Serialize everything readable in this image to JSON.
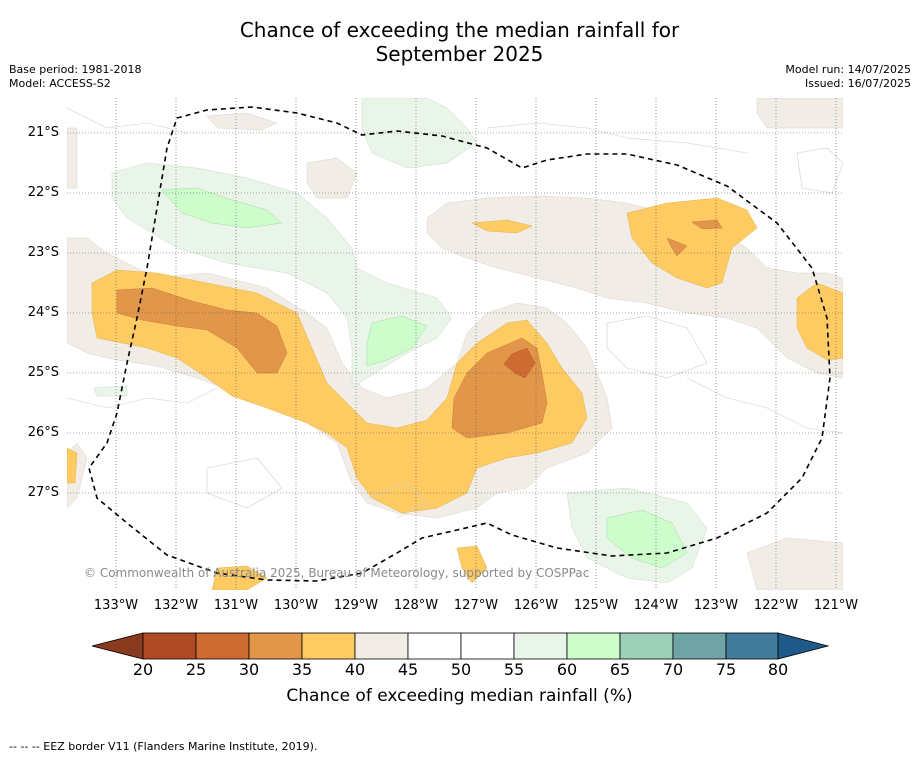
{
  "title_line1": "Chance of exceeding the median rainfall for",
  "title_line2": "September 2025",
  "meta": {
    "base_period": "Base period: 1981-2018",
    "model": "Model: ACCESS-S2",
    "model_run": "Model run: 14/07/2025",
    "issued": "Issued: 16/07/2025"
  },
  "axes": {
    "lat_labels": [
      "21°S",
      "22°S",
      "23°S",
      "24°S",
      "25°S",
      "26°S",
      "27°S"
    ],
    "lon_labels": [
      "133°W",
      "132°W",
      "131°W",
      "130°W",
      "129°W",
      "128°W",
      "127°W",
      "126°W",
      "125°W",
      "124°W",
      "123°W",
      "122°W",
      "121°W"
    ]
  },
  "copyright": "© Commonwealth of Australia 2025, Bureau of Meteorology, supported by COSPPac",
  "colorbar": {
    "ticks": [
      "20",
      "25",
      "30",
      "35",
      "40",
      "45",
      "50",
      "55",
      "60",
      "65",
      "70",
      "75",
      "80"
    ],
    "label": "Chance of exceeding median rainfall (%)",
    "colors": {
      "below20": "#8a3a1e",
      "c20_25": "#b04a24",
      "c25_30": "#cd6b32",
      "c30_35": "#e1964a",
      "c35_40": "#fecb62",
      "c40_45": "#f1ede6",
      "c45_50": "#ffffff",
      "c50_55": "#ffffff",
      "c55_60": "#e9f5e8",
      "c60_65": "#ccfdca",
      "c65_70": "#9ecfb8",
      "c70_75": "#6fa3a6",
      "c75_80": "#437b9c",
      "above80": "#1f5a8a"
    }
  },
  "footnote": "--  --  -- EEZ border V11 (Flanders Marine Institute, 2019)."
}
